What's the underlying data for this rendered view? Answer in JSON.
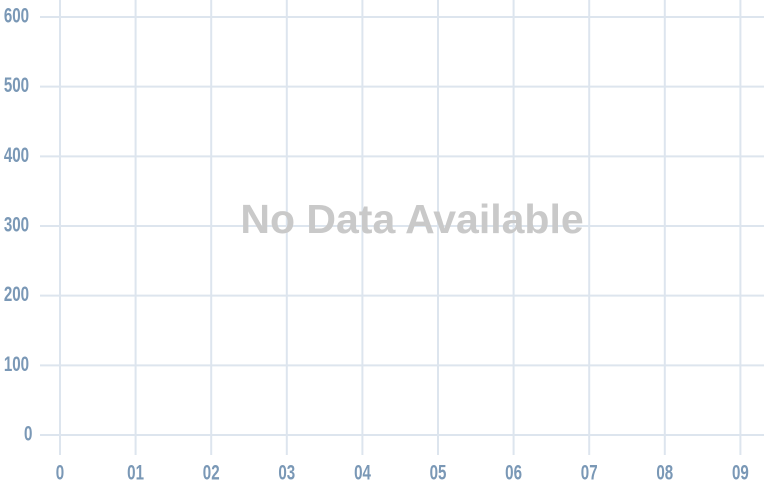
{
  "chart_data": {
    "type": "line",
    "x": [
      "0",
      "01",
      "02",
      "03",
      "04",
      "05",
      "06",
      "07",
      "08",
      "09"
    ],
    "series": [],
    "ylim": [
      0,
      600
    ],
    "y_ticks": [
      "0",
      "100",
      "200",
      "300",
      "400",
      "500",
      "600"
    ],
    "grid": true,
    "message": "No Data Available"
  },
  "colors": {
    "grid": "#dde5ee",
    "tick_label": "#7a98b6",
    "message": "#c9c9c9"
  }
}
